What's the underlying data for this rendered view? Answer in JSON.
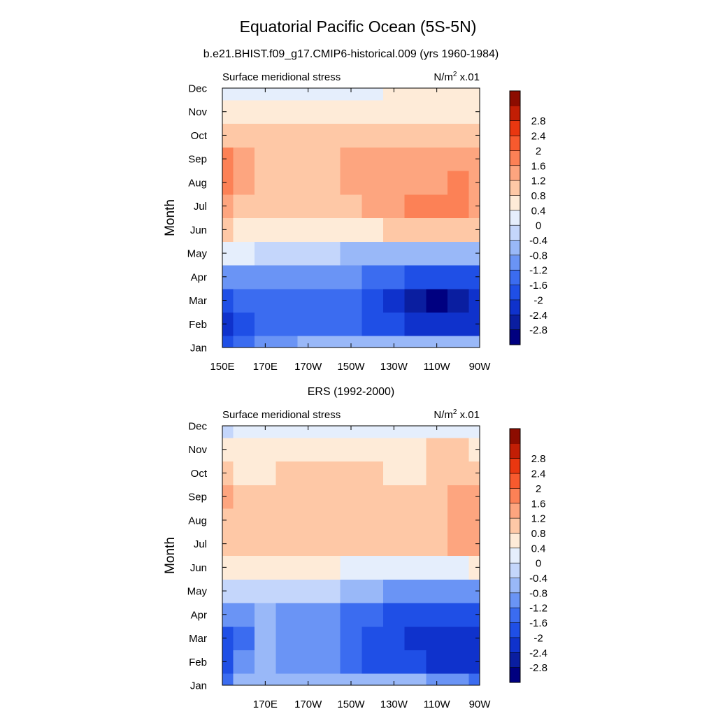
{
  "figure": {
    "title": "Equatorial Pacific Ocean (5S-5N)"
  },
  "chart_data": [
    {
      "type": "heatmap",
      "title": "b.e21.BHIST.f09_g17.CMIP6-historical.009 (yrs 1960-1984)",
      "subtitle_left": "Surface meridional stress",
      "units_main": "N/m",
      "units_sup": "2",
      "units_suffix": " x.01",
      "xlabel": "",
      "ylabel": "Month",
      "x_ticks": [
        "150E",
        "170E",
        "170W",
        "150W",
        "130W",
        "110W",
        "90W"
      ],
      "x_tick_values": [
        150,
        170,
        190,
        210,
        230,
        250,
        270
      ],
      "xlim": [
        150,
        270
      ],
      "y_ticks": [
        "Jan",
        "Feb",
        "Mar",
        "Apr",
        "May",
        "Jun",
        "Jul",
        "Aug",
        "Sep",
        "Oct",
        "Nov",
        "Dec"
      ],
      "ylim": [
        1,
        12
      ],
      "x_columns": [
        150,
        160,
        170,
        180,
        190,
        200,
        210,
        220,
        230,
        240,
        250,
        260,
        270
      ],
      "rows": [
        {
          "month": "Jan",
          "values": [
            -2.0,
            -1.4,
            -1.0,
            -0.9,
            -0.8,
            -0.6,
            -0.7,
            -0.8,
            -0.8,
            -0.8,
            -0.8,
            -0.7,
            -0.6
          ]
        },
        {
          "month": "Feb",
          "values": [
            -2.2,
            -1.7,
            -1.5,
            -1.4,
            -1.4,
            -1.4,
            -1.5,
            -1.8,
            -2.0,
            -2.2,
            -2.4,
            -2.3,
            -2.2
          ]
        },
        {
          "month": "Mar",
          "values": [
            -1.8,
            -1.5,
            -1.5,
            -1.5,
            -1.5,
            -1.5,
            -1.6,
            -1.9,
            -2.4,
            -2.7,
            -2.9,
            -2.6,
            -2.4
          ]
        },
        {
          "month": "Apr",
          "values": [
            -1.2,
            -1.2,
            -1.1,
            -1.1,
            -1.0,
            -1.0,
            -1.1,
            -1.3,
            -1.6,
            -1.8,
            -1.9,
            -1.8,
            -1.7
          ]
        },
        {
          "month": "May",
          "values": [
            0.3,
            0.0,
            -0.2,
            -0.2,
            -0.3,
            -0.4,
            -0.5,
            -0.6,
            -0.6,
            -0.7,
            -0.7,
            -0.6,
            -0.5
          ]
        },
        {
          "month": "Jun",
          "values": [
            0.9,
            0.6,
            0.6,
            0.6,
            0.6,
            0.6,
            0.6,
            0.7,
            0.8,
            0.9,
            1.0,
            1.0,
            1.0
          ]
        },
        {
          "month": "Jul",
          "values": [
            1.4,
            1.1,
            1.0,
            1.0,
            1.0,
            1.0,
            1.1,
            1.3,
            1.5,
            1.6,
            1.7,
            1.7,
            1.5
          ]
        },
        {
          "month": "Aug",
          "values": [
            1.7,
            1.2,
            1.1,
            1.1,
            1.1,
            1.1,
            1.2,
            1.3,
            1.4,
            1.5,
            1.5,
            1.6,
            1.4
          ]
        },
        {
          "month": "Sep",
          "values": [
            1.6,
            1.2,
            1.1,
            1.1,
            1.1,
            1.1,
            1.2,
            1.3,
            1.3,
            1.3,
            1.3,
            1.3,
            1.2
          ]
        },
        {
          "month": "Oct",
          "values": [
            0.9,
            0.9,
            0.9,
            0.9,
            0.9,
            0.9,
            0.9,
            0.9,
            0.8,
            0.8,
            0.8,
            0.8,
            0.8
          ]
        },
        {
          "month": "Nov",
          "values": [
            0.5,
            0.5,
            0.5,
            0.5,
            0.5,
            0.5,
            0.5,
            0.5,
            0.5,
            0.6,
            0.7,
            0.7,
            0.6
          ]
        },
        {
          "month": "Dec",
          "values": [
            0.2,
            0.2,
            0.2,
            0.2,
            0.2,
            0.2,
            0.3,
            0.3,
            0.4,
            0.6,
            0.6,
            0.5,
            0.4
          ]
        }
      ]
    },
    {
      "type": "heatmap",
      "title": "ERS (1992-2000)",
      "subtitle_left": "Surface meridional stress",
      "units_main": "N/m",
      "units_sup": "2",
      "units_suffix": " x.01",
      "xlabel": "",
      "ylabel": "Month",
      "x_ticks": [
        "170E",
        "170W",
        "150W",
        "130W",
        "110W",
        "90W"
      ],
      "x_tick_values": [
        170,
        190,
        210,
        230,
        250,
        270
      ],
      "xlim": [
        150,
        270
      ],
      "y_ticks": [
        "Jan",
        "Feb",
        "Mar",
        "Apr",
        "May",
        "Jun",
        "Jul",
        "Aug",
        "Sep",
        "Oct",
        "Nov",
        "Dec"
      ],
      "ylim": [
        1,
        12
      ],
      "x_columns": [
        150,
        160,
        170,
        180,
        190,
        200,
        210,
        220,
        230,
        240,
        250,
        260,
        270
      ],
      "rows": [
        {
          "month": "Jan",
          "values": [
            -1.4,
            -0.8,
            -0.7,
            -0.6,
            -0.5,
            -0.5,
            -0.6,
            -0.6,
            -0.7,
            -0.8,
            -0.9,
            -1.1,
            -1.4
          ]
        },
        {
          "month": "Feb",
          "values": [
            -1.7,
            -1.2,
            -0.7,
            -1.0,
            -0.9,
            -1.0,
            -1.3,
            -1.7,
            -1.8,
            -2.0,
            -2.2,
            -2.3,
            -2.3
          ]
        },
        {
          "month": "Mar",
          "values": [
            -1.8,
            -1.4,
            -0.7,
            -1.1,
            -1.0,
            -1.2,
            -1.5,
            -1.8,
            -2.0,
            -2.2,
            -2.3,
            -2.4,
            -2.3
          ]
        },
        {
          "month": "Apr",
          "values": [
            -1.0,
            -0.9,
            -0.8,
            -0.9,
            -1.0,
            -1.2,
            -1.5,
            -1.6,
            -1.7,
            -1.7,
            -1.7,
            -1.8,
            -1.8
          ]
        },
        {
          "month": "May",
          "values": [
            -0.2,
            -0.2,
            -0.2,
            -0.3,
            -0.3,
            -0.4,
            -0.5,
            -0.7,
            -0.9,
            -1.0,
            -1.0,
            -1.0,
            -0.9
          ]
        },
        {
          "month": "Jun",
          "values": [
            0.5,
            0.4,
            0.4,
            0.4,
            0.4,
            0.4,
            0.3,
            0.2,
            0.1,
            0.1,
            0.2,
            0.3,
            0.4
          ]
        },
        {
          "month": "Jul",
          "values": [
            1.0,
            0.8,
            0.8,
            0.8,
            0.8,
            0.9,
            1.0,
            0.9,
            0.9,
            0.9,
            1.0,
            1.3,
            1.4
          ]
        },
        {
          "month": "Aug",
          "values": [
            1.1,
            0.9,
            0.9,
            0.9,
            0.9,
            0.9,
            1.0,
            1.0,
            0.9,
            0.9,
            1.1,
            1.3,
            1.4
          ]
        },
        {
          "month": "Sep",
          "values": [
            1.4,
            1.0,
            0.9,
            0.9,
            0.9,
            1.0,
            1.0,
            1.0,
            0.9,
            0.9,
            1.0,
            1.2,
            1.3
          ]
        },
        {
          "month": "Oct",
          "values": [
            0.8,
            0.7,
            0.7,
            0.8,
            0.8,
            0.9,
            0.9,
            0.8,
            0.6,
            0.7,
            0.9,
            1.0,
            1.0
          ]
        },
        {
          "month": "Nov",
          "values": [
            0.4,
            0.4,
            0.4,
            0.5,
            0.5,
            0.5,
            0.5,
            0.5,
            0.4,
            0.5,
            0.8,
            0.8,
            0.5
          ]
        },
        {
          "month": "Dec",
          "values": [
            -0.1,
            0.0,
            0.1,
            0.2,
            0.2,
            0.2,
            0.2,
            0.2,
            0.2,
            0.2,
            0.2,
            0.2,
            0.2
          ]
        }
      ]
    }
  ],
  "colorbar": {
    "labels": [
      "2.8",
      "2.4",
      "2",
      "1.6",
      "1.2",
      "0.8",
      "0.4",
      "0",
      "-0.4",
      "-0.8",
      "-1.2",
      "-1.6",
      "-2",
      "-2.4",
      "-2.8"
    ],
    "levels": [
      -2.8,
      -2.4,
      -2.0,
      -1.6,
      -1.2,
      -0.8,
      -0.4,
      0.0,
      0.4,
      0.8,
      1.2,
      1.6,
      2.0,
      2.4,
      2.8
    ],
    "colors": [
      "#000080",
      "#0a1ea0",
      "#0f32cc",
      "#1f4fe6",
      "#3b6cf0",
      "#6a94f5",
      "#99b8f8",
      "#c4d6fb",
      "#e5eefc",
      "#feebd8",
      "#fec8a6",
      "#fda57f",
      "#fc8156",
      "#f85a2e",
      "#e93710",
      "#c21e05",
      "#8c0c00"
    ]
  }
}
